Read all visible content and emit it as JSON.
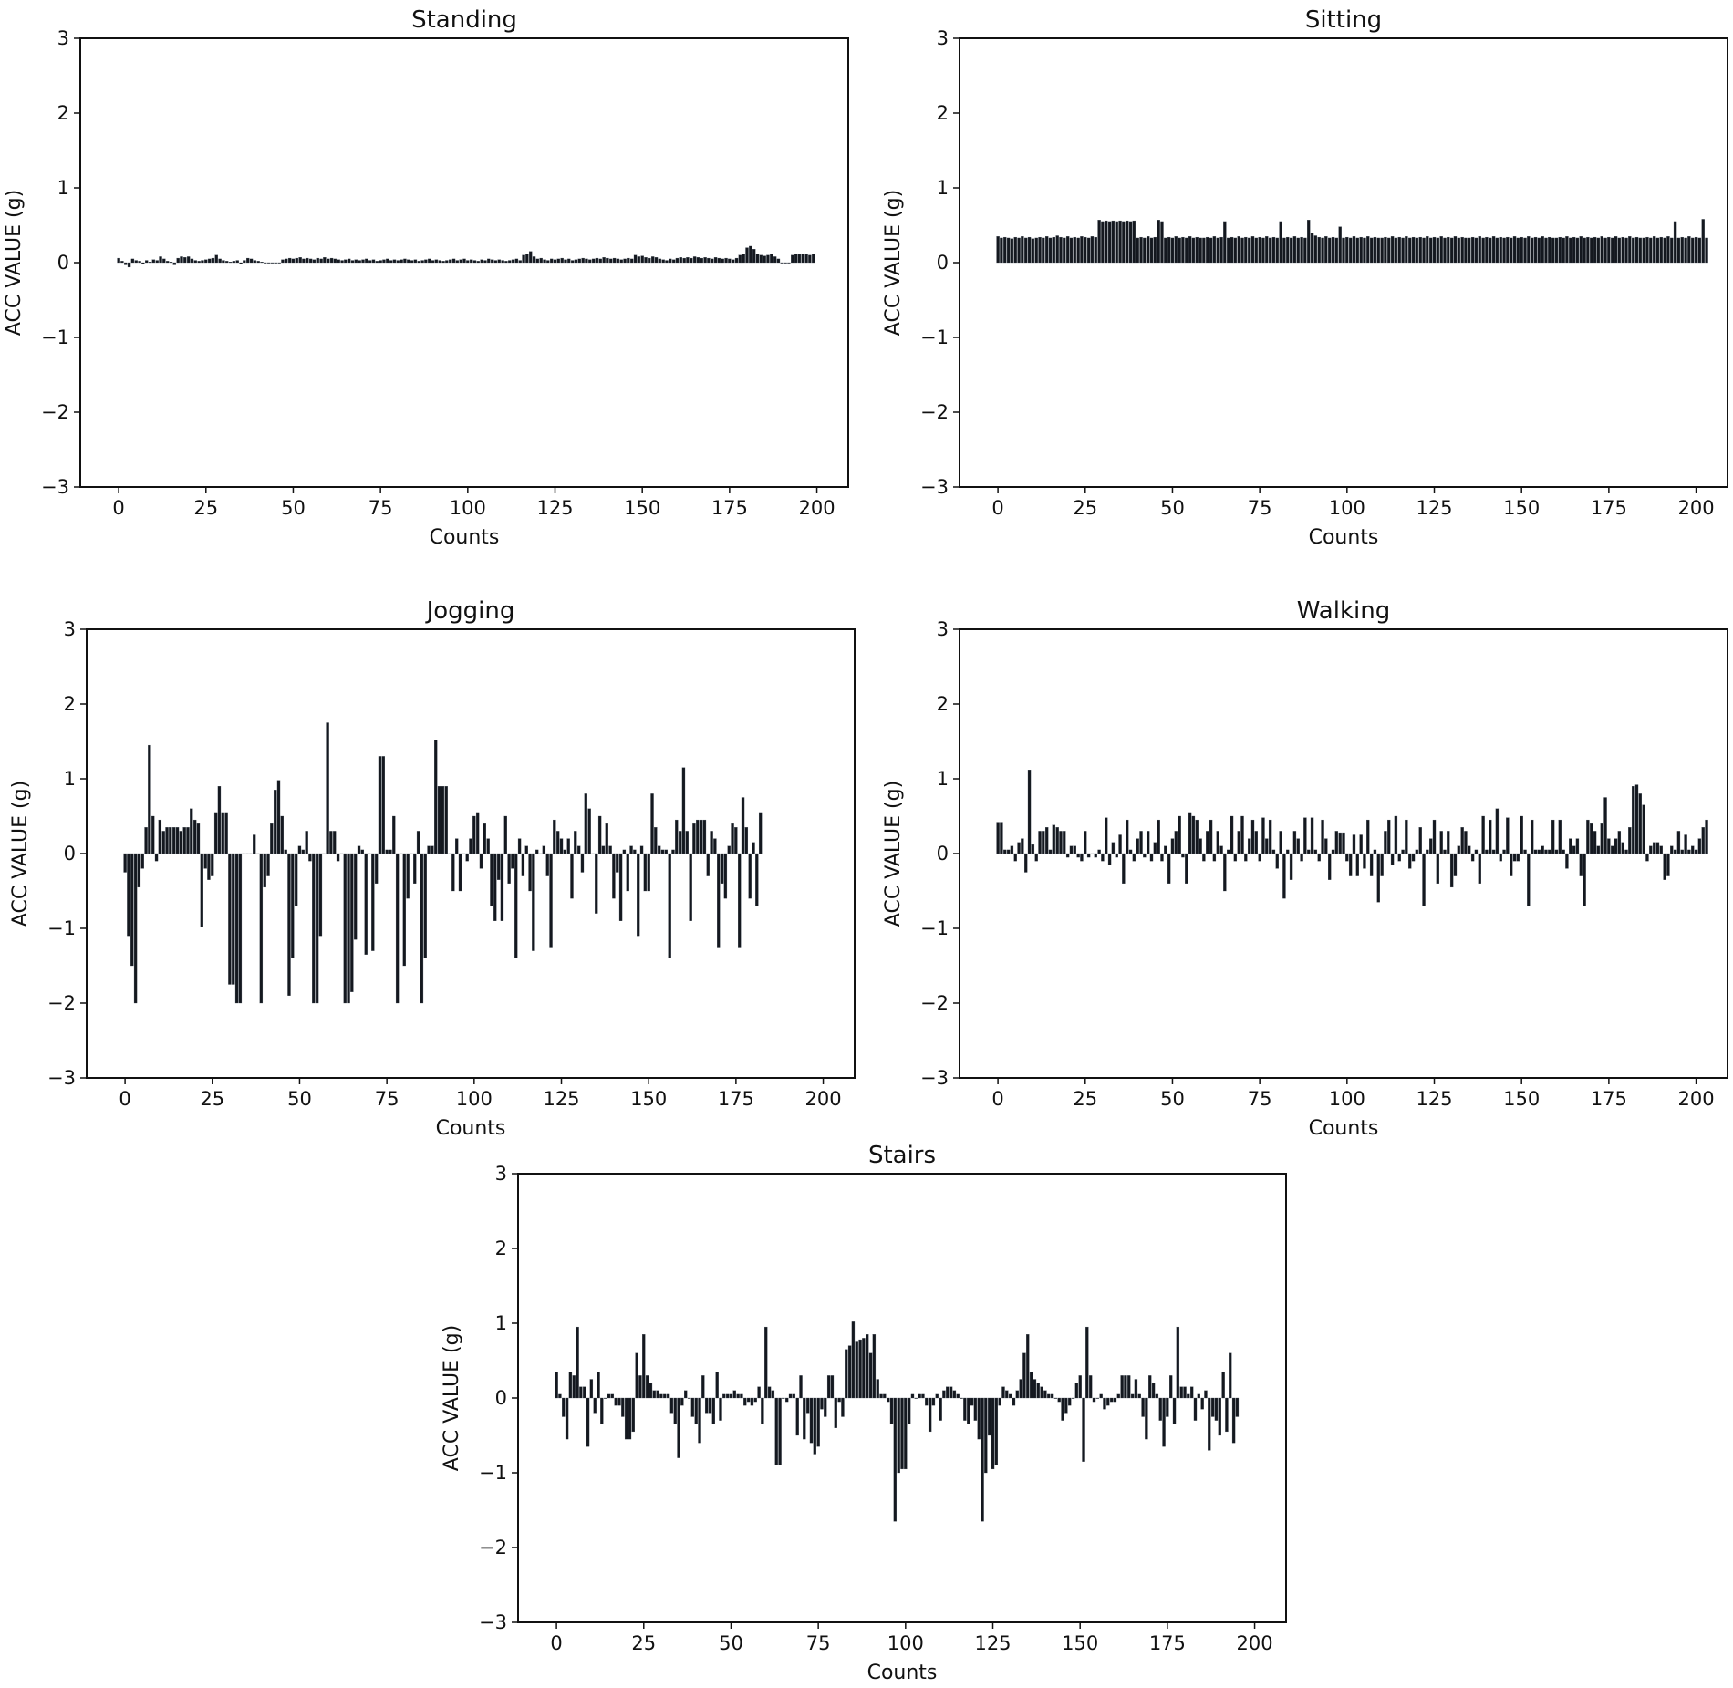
{
  "chart_data": [
    {
      "type": "bar",
      "title": "Standing",
      "xlabel": "Counts",
      "ylabel": "ACC VALUE (g)",
      "xlim": [
        -11,
        209
      ],
      "ylim": [
        -3,
        3
      ],
      "xticks": [
        0,
        25,
        50,
        75,
        100,
        125,
        150,
        175,
        200
      ],
      "yticks": [
        -3,
        -2,
        -1,
        0,
        1,
        2,
        3
      ],
      "grid": false,
      "values": [
        0.06,
        0.02,
        -0.03,
        -0.06,
        0.05,
        0.03,
        0.02,
        -0.02,
        0.03,
        0.01,
        0.04,
        0.03,
        0.08,
        0.05,
        0.02,
        0.01,
        -0.03,
        0.06,
        0.08,
        0.07,
        0.08,
        0.05,
        0.03,
        0.02,
        0.03,
        0.04,
        0.05,
        0.06,
        0.1,
        0.05,
        0.03,
        0.02,
        0.01,
        0.02,
        0.03,
        -0.02,
        0.03,
        0.06,
        0.05,
        0.03,
        0.02,
        0.01,
        0.0,
        0.0,
        0.0,
        0.0,
        0.0,
        0.04,
        0.05,
        0.06,
        0.05,
        0.06,
        0.07,
        0.05,
        0.06,
        0.05,
        0.04,
        0.06,
        0.05,
        0.07,
        0.05,
        0.06,
        0.05,
        0.04,
        0.03,
        0.04,
        0.05,
        0.03,
        0.04,
        0.03,
        0.04,
        0.05,
        0.03,
        0.04,
        0.02,
        0.03,
        0.04,
        0.05,
        0.03,
        0.04,
        0.03,
        0.04,
        0.05,
        0.04,
        0.03,
        0.04,
        0.02,
        0.03,
        0.04,
        0.05,
        0.03,
        0.04,
        0.03,
        0.02,
        0.03,
        0.04,
        0.05,
        0.03,
        0.04,
        0.05,
        0.03,
        0.04,
        0.03,
        0.02,
        0.04,
        0.03,
        0.05,
        0.04,
        0.03,
        0.04,
        0.03,
        0.02,
        0.03,
        0.04,
        0.05,
        0.03,
        0.1,
        0.12,
        0.15,
        0.08,
        0.05,
        0.06,
        0.04,
        0.03,
        0.05,
        0.04,
        0.05,
        0.06,
        0.04,
        0.05,
        0.03,
        0.04,
        0.05,
        0.06,
        0.05,
        0.04,
        0.05,
        0.06,
        0.05,
        0.07,
        0.06,
        0.05,
        0.06,
        0.05,
        0.04,
        0.05,
        0.06,
        0.05,
        0.1,
        0.08,
        0.09,
        0.07,
        0.06,
        0.08,
        0.07,
        0.05,
        0.04,
        0.03,
        0.05,
        0.04,
        0.06,
        0.07,
        0.06,
        0.07,
        0.06,
        0.08,
        0.07,
        0.06,
        0.07,
        0.06,
        0.05,
        0.07,
        0.06,
        0.05,
        0.06,
        0.05,
        0.04,
        0.06,
        0.1,
        0.12,
        0.2,
        0.22,
        0.18,
        0.12,
        0.1,
        0.09,
        0.1,
        0.12,
        0.08,
        0.05,
        0.0,
        0.0,
        0.0,
        0.1,
        0.12,
        0.11,
        0.12,
        0.11,
        0.1,
        0.12
      ]
    },
    {
      "type": "bar",
      "title": "Sitting",
      "xlabel": "Counts",
      "ylabel": "ACC VALUE (g)",
      "xlim": [
        -11,
        209
      ],
      "ylim": [
        -3,
        3
      ],
      "xticks": [
        0,
        25,
        50,
        75,
        100,
        125,
        150,
        175,
        200
      ],
      "yticks": [
        -3,
        -2,
        -1,
        0,
        1,
        2,
        3
      ],
      "grid": false,
      "values": [
        0.35,
        0.33,
        0.34,
        0.33,
        0.32,
        0.34,
        0.33,
        0.35,
        0.33,
        0.34,
        0.32,
        0.33,
        0.34,
        0.33,
        0.35,
        0.33,
        0.34,
        0.36,
        0.34,
        0.33,
        0.35,
        0.33,
        0.34,
        0.33,
        0.35,
        0.34,
        0.33,
        0.35,
        0.34,
        0.57,
        0.55,
        0.56,
        0.55,
        0.56,
        0.55,
        0.56,
        0.55,
        0.56,
        0.55,
        0.56,
        0.33,
        0.34,
        0.33,
        0.35,
        0.33,
        0.34,
        0.57,
        0.55,
        0.33,
        0.34,
        0.33,
        0.35,
        0.33,
        0.34,
        0.33,
        0.35,
        0.33,
        0.34,
        0.33,
        0.33,
        0.34,
        0.33,
        0.35,
        0.33,
        0.34,
        0.55,
        0.33,
        0.34,
        0.33,
        0.35,
        0.33,
        0.34,
        0.33,
        0.35,
        0.33,
        0.34,
        0.33,
        0.35,
        0.33,
        0.34,
        0.33,
        0.55,
        0.33,
        0.34,
        0.33,
        0.35,
        0.33,
        0.34,
        0.33,
        0.57,
        0.4,
        0.36,
        0.34,
        0.33,
        0.35,
        0.33,
        0.34,
        0.33,
        0.48,
        0.33,
        0.34,
        0.33,
        0.35,
        0.33,
        0.34,
        0.33,
        0.35,
        0.33,
        0.34,
        0.33,
        0.33,
        0.34,
        0.33,
        0.35,
        0.33,
        0.34,
        0.33,
        0.35,
        0.33,
        0.34,
        0.33,
        0.34,
        0.33,
        0.35,
        0.33,
        0.34,
        0.33,
        0.35,
        0.33,
        0.34,
        0.33,
        0.35,
        0.33,
        0.34,
        0.33,
        0.33,
        0.34,
        0.33,
        0.35,
        0.33,
        0.34,
        0.33,
        0.35,
        0.33,
        0.34,
        0.33,
        0.34,
        0.33,
        0.35,
        0.33,
        0.34,
        0.33,
        0.35,
        0.33,
        0.34,
        0.33,
        0.35,
        0.33,
        0.34,
        0.33,
        0.33,
        0.34,
        0.33,
        0.35,
        0.33,
        0.34,
        0.33,
        0.35,
        0.33,
        0.34,
        0.33,
        0.34,
        0.33,
        0.35,
        0.33,
        0.34,
        0.33,
        0.35,
        0.33,
        0.34,
        0.33,
        0.35,
        0.33,
        0.34,
        0.33,
        0.33,
        0.34,
        0.33,
        0.35,
        0.33,
        0.34,
        0.33,
        0.35,
        0.33,
        0.55,
        0.33,
        0.34,
        0.33,
        0.35,
        0.33,
        0.34,
        0.33,
        0.58,
        0.33
      ]
    },
    {
      "type": "bar",
      "title": "Jogging",
      "xlabel": "Counts",
      "ylabel": "ACC VALUE (g)",
      "xlim": [
        -11,
        209
      ],
      "ylim": [
        -3,
        3
      ],
      "xticks": [
        0,
        25,
        50,
        75,
        100,
        125,
        150,
        175,
        200
      ],
      "yticks": [
        -3,
        -2,
        -1,
        0,
        1,
        2,
        3
      ],
      "grid": false,
      "values": [
        -0.25,
        -1.1,
        -1.5,
        -2.0,
        -0.45,
        -0.2,
        0.35,
        1.45,
        0.5,
        -0.1,
        0.45,
        0.3,
        0.35,
        0.35,
        0.35,
        0.35,
        0.3,
        0.35,
        0.35,
        0.6,
        0.45,
        0.4,
        -0.98,
        -0.2,
        -0.35,
        -0.3,
        0.55,
        0.9,
        0.55,
        0.55,
        -1.75,
        -1.75,
        -2.0,
        -2.0,
        0.0,
        0.0,
        0.0,
        0.25,
        0.0,
        -2.0,
        -0.45,
        -0.3,
        0.4,
        0.85,
        0.98,
        0.5,
        0.05,
        -1.9,
        -1.4,
        -0.7,
        0.1,
        0.05,
        0.3,
        -0.1,
        -2.0,
        -2.0,
        -1.1,
        0.0,
        1.75,
        0.3,
        0.3,
        -0.1,
        0.0,
        -2.0,
        -2.0,
        -1.85,
        -1.15,
        0.1,
        0.05,
        -1.35,
        0.0,
        -1.3,
        -0.4,
        1.3,
        1.3,
        0.05,
        0.05,
        0.5,
        -2.0,
        0.0,
        -1.5,
        -0.6,
        0.0,
        -0.4,
        0.3,
        -2.0,
        -1.4,
        0.1,
        0.1,
        1.52,
        0.9,
        0.9,
        0.9,
        0.0,
        -0.5,
        0.2,
        -0.5,
        0.0,
        -0.1,
        0.2,
        0.5,
        0.55,
        -0.2,
        0.4,
        0.2,
        -0.7,
        -0.9,
        -0.35,
        -0.9,
        0.5,
        -0.4,
        -0.2,
        -1.4,
        0.2,
        -0.3,
        0.1,
        -0.5,
        -1.3,
        0.05,
        0.0,
        0.1,
        -0.3,
        -1.25,
        0.45,
        0.3,
        0.2,
        0.05,
        0.2,
        -0.6,
        0.3,
        0.1,
        -0.25,
        0.8,
        0.6,
        0.0,
        -0.8,
        0.5,
        0.1,
        0.4,
        0.1,
        -0.6,
        -0.25,
        -0.9,
        0.05,
        -0.5,
        0.1,
        0.05,
        -1.1,
        0.1,
        -0.5,
        -0.5,
        0.8,
        0.35,
        0.1,
        0.05,
        0.05,
        -1.4,
        0.05,
        0.45,
        0.3,
        1.15,
        0.3,
        -0.9,
        0.4,
        0.45,
        0.45,
        0.45,
        -0.3,
        0.3,
        0.2,
        -1.25,
        -0.4,
        -0.6,
        0.1,
        0.4,
        0.35,
        -1.25,
        0.75,
        0.35,
        -0.6,
        0.15,
        -0.7,
        0.55
      ]
    },
    {
      "type": "bar",
      "title": "Walking",
      "xlabel": "Counts",
      "ylabel": "ACC VALUE (g)",
      "xlim": [
        -11,
        209
      ],
      "ylim": [
        -3,
        3
      ],
      "xticks": [
        0,
        25,
        50,
        75,
        100,
        125,
        150,
        175,
        200
      ],
      "yticks": [
        -3,
        -2,
        -1,
        0,
        1,
        2,
        3
      ],
      "grid": false,
      "values": [
        0.42,
        0.42,
        0.05,
        0.05,
        0.1,
        -0.1,
        0.15,
        0.2,
        -0.25,
        1.12,
        0.12,
        -0.1,
        0.3,
        0.3,
        0.35,
        0.05,
        0.38,
        0.35,
        0.3,
        0.3,
        -0.05,
        0.1,
        0.1,
        -0.05,
        -0.1,
        0.3,
        -0.05,
        0.0,
        -0.05,
        0.05,
        -0.1,
        0.48,
        -0.15,
        0.15,
        -0.05,
        0.25,
        -0.4,
        0.45,
        0.05,
        -0.1,
        0.2,
        0.3,
        -0.05,
        0.3,
        -0.1,
        0.15,
        0.45,
        -0.1,
        0.1,
        -0.4,
        0.2,
        0.3,
        0.5,
        -0.05,
        -0.4,
        0.55,
        0.5,
        0.45,
        0.2,
        -0.1,
        0.3,
        0.45,
        -0.1,
        0.3,
        0.1,
        -0.5,
        0.05,
        0.5,
        -0.1,
        0.3,
        0.5,
        -0.1,
        0.2,
        0.45,
        0.3,
        -0.1,
        0.48,
        0.2,
        0.45,
        0.05,
        -0.2,
        0.3,
        -0.6,
        0.05,
        -0.35,
        0.3,
        0.2,
        -0.1,
        0.48,
        0.05,
        0.48,
        0.05,
        -0.1,
        0.45,
        0.2,
        -0.35,
        0.05,
        0.3,
        0.28,
        0.28,
        -0.1,
        -0.3,
        0.25,
        -0.3,
        0.25,
        -0.2,
        0.45,
        -0.3,
        0.05,
        -0.65,
        -0.3,
        0.3,
        0.45,
        -0.15,
        0.5,
        -0.1,
        0.05,
        0.45,
        -0.2,
        -0.1,
        0.05,
        0.35,
        -0.7,
        0.05,
        0.2,
        0.45,
        -0.4,
        0.3,
        0.05,
        0.3,
        -0.45,
        -0.3,
        0.1,
        0.35,
        0.3,
        0.1,
        -0.1,
        0.05,
        -0.4,
        0.5,
        0.05,
        0.45,
        0.05,
        0.6,
        -0.1,
        0.05,
        0.48,
        -0.3,
        -0.1,
        -0.1,
        0.5,
        0.05,
        -0.7,
        0.45,
        0.05,
        0.05,
        0.1,
        0.05,
        0.05,
        0.45,
        0.05,
        0.45,
        0.05,
        -0.2,
        0.2,
        0.1,
        0.2,
        -0.3,
        -0.7,
        0.45,
        0.4,
        0.3,
        0.1,
        0.4,
        0.75,
        0.2,
        0.1,
        0.2,
        0.3,
        0.15,
        0.05,
        0.35,
        0.9,
        0.92,
        0.8,
        0.65,
        -0.1,
        0.1,
        0.15,
        0.15,
        0.1,
        -0.35,
        -0.3,
        0.1,
        0.05,
        0.3,
        0.05,
        0.25,
        0.05,
        0.1,
        0.05,
        0.2,
        0.35,
        0.45
      ]
    },
    {
      "type": "bar",
      "title": "Stairs",
      "xlabel": "Counts",
      "ylabel": "ACC VALUE (g)",
      "xlim": [
        -11,
        209
      ],
      "ylim": [
        -3,
        3
      ],
      "xticks": [
        0,
        25,
        50,
        75,
        100,
        125,
        150,
        175,
        200
      ],
      "yticks": [
        -3,
        -2,
        -1,
        0,
        1,
        2,
        3
      ],
      "grid": false,
      "values": [
        0.35,
        0.05,
        -0.25,
        -0.55,
        0.35,
        0.3,
        0.95,
        0.15,
        0.15,
        -0.65,
        0.25,
        -0.2,
        0.35,
        -0.35,
        0.0,
        0.05,
        0.05,
        -0.1,
        -0.1,
        -0.25,
        -0.55,
        -0.55,
        -0.45,
        0.6,
        0.3,
        0.85,
        0.3,
        0.2,
        0.1,
        0.1,
        0.05,
        0.05,
        0.05,
        -0.2,
        -0.35,
        -0.8,
        -0.1,
        0.1,
        0.0,
        -0.25,
        -0.35,
        -0.6,
        0.3,
        -0.2,
        -0.2,
        -0.35,
        0.35,
        -0.3,
        0.05,
        0.05,
        0.05,
        0.1,
        0.05,
        0.05,
        -0.1,
        -0.05,
        -0.1,
        -0.05,
        0.15,
        -0.35,
        0.95,
        0.15,
        0.1,
        -0.9,
        -0.9,
        0.0,
        -0.05,
        0.05,
        0.05,
        -0.5,
        0.3,
        -0.55,
        -0.2,
        -0.6,
        -0.75,
        -0.65,
        -0.15,
        -0.25,
        0.3,
        0.3,
        -0.4,
        -0.05,
        -0.25,
        0.65,
        0.7,
        1.02,
        0.75,
        0.78,
        0.8,
        0.85,
        0.6,
        0.85,
        0.25,
        0.05,
        0.05,
        -0.05,
        -0.35,
        -1.65,
        -1.0,
        -0.95,
        -0.95,
        -0.35,
        0.05,
        0.0,
        0.05,
        0.05,
        -0.1,
        -0.45,
        -0.1,
        0.05,
        -0.3,
        0.1,
        0.15,
        0.15,
        0.1,
        0.05,
        0.0,
        -0.3,
        -0.35,
        -0.1,
        -0.3,
        -0.55,
        -1.65,
        -1.0,
        -0.5,
        -0.95,
        -0.9,
        -0.1,
        0.15,
        0.1,
        0.05,
        -0.1,
        0.1,
        0.25,
        0.6,
        0.85,
        0.35,
        0.25,
        0.2,
        0.15,
        0.1,
        0.05,
        0.05,
        0.0,
        -0.05,
        -0.3,
        -0.2,
        -0.1,
        0.0,
        0.2,
        0.3,
        -0.85,
        0.95,
        0.3,
        -0.05,
        0.0,
        0.05,
        -0.15,
        -0.1,
        -0.05,
        -0.05,
        0.05,
        0.3,
        0.3,
        0.3,
        0.05,
        0.25,
        0.05,
        -0.25,
        -0.55,
        0.3,
        0.2,
        0.05,
        -0.3,
        -0.65,
        -0.25,
        0.3,
        -0.35,
        0.95,
        0.15,
        0.15,
        0.05,
        0.15,
        -0.3,
        0.05,
        -0.15,
        0.1,
        -0.7,
        -0.25,
        -0.3,
        -0.5,
        0.35,
        -0.45,
        0.6,
        -0.6,
        -0.25
      ]
    }
  ]
}
